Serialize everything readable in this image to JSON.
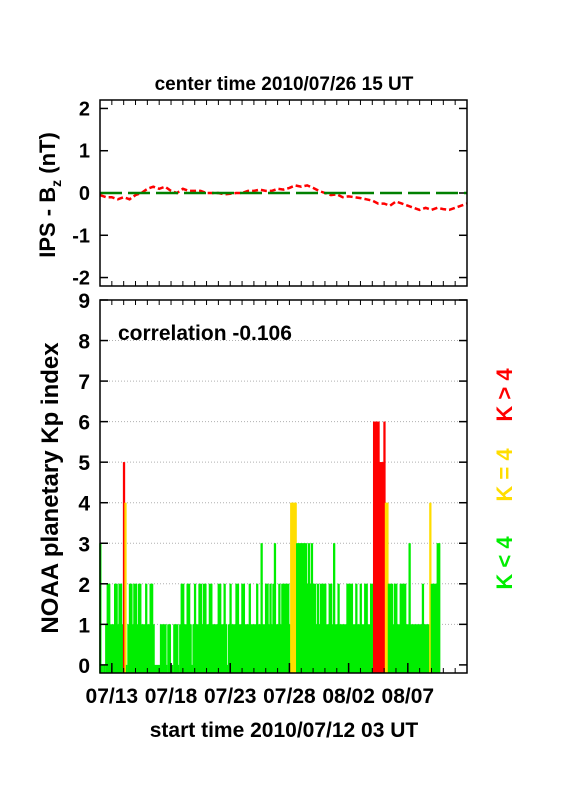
{
  "chart_data": [
    {
      "type": "line",
      "title": "center time 2010/07/26 15 UT",
      "ylabel_main": "IPS - B",
      "ylabel_sub": "z",
      "ylabel_unit": " (nT)",
      "ylim": [
        -2.2,
        2.2
      ],
      "yticks": [
        2,
        1,
        0,
        -1,
        -2
      ],
      "xlim_days": [
        0,
        31
      ],
      "series": [
        {
          "color": "#ff0000",
          "style": "dashed",
          "x": [
            0.0,
            0.5,
            1.0,
            1.5,
            2.0,
            2.5,
            3.0,
            3.5,
            4.0,
            4.5,
            5.0,
            5.5,
            6.0,
            6.5,
            7.0,
            7.5,
            8.0,
            8.5,
            9.0,
            9.5,
            10.0,
            10.5,
            11.0,
            11.5,
            12.0,
            12.5,
            13.0,
            13.5,
            14.0,
            14.5,
            15.0,
            15.5,
            16.0,
            16.5,
            17.0,
            17.5,
            18.0,
            18.5,
            19.0,
            19.5,
            20.0,
            20.5,
            21.0,
            21.5,
            22.0,
            22.5,
            23.0,
            23.5,
            24.0,
            24.5,
            25.0,
            25.5,
            26.0,
            26.5,
            27.0,
            27.5,
            28.0,
            28.5,
            29.0,
            29.5,
            30.0,
            30.5,
            31.0
          ],
          "y": [
            -0.05,
            -0.1,
            -0.1,
            -0.15,
            -0.1,
            -0.15,
            -0.05,
            0.0,
            0.1,
            0.15,
            0.1,
            0.15,
            0.05,
            0.0,
            0.1,
            0.05,
            0.05,
            0.05,
            0.0,
            0.0,
            0.0,
            -0.03,
            -0.02,
            0.0,
            0.0,
            0.05,
            0.05,
            0.08,
            0.05,
            0.05,
            0.1,
            0.08,
            0.12,
            0.18,
            0.15,
            0.18,
            0.12,
            0.05,
            0.0,
            -0.05,
            -0.03,
            -0.1,
            -0.08,
            -0.1,
            -0.12,
            -0.15,
            -0.18,
            -0.25,
            -0.25,
            -0.3,
            -0.2,
            -0.25,
            -0.3,
            -0.35,
            -0.4,
            -0.35,
            -0.4,
            -0.35,
            -0.38,
            -0.4,
            -0.35,
            -0.3,
            -0.25
          ]
        },
        {
          "color": "#008000",
          "style": "long-dash",
          "x": [
            0,
            31
          ],
          "y": [
            0,
            0
          ]
        }
      ]
    },
    {
      "type": "bar",
      "ylabel": "NOAA planetary Kp index",
      "xlabel": "start time 2010/07/12 03 UT",
      "annotation": "correlation -0.106",
      "ylim": [
        -0.2,
        9
      ],
      "yticks": [
        0,
        1,
        2,
        3,
        4,
        5,
        6,
        7,
        8,
        9
      ],
      "xticks": [
        {
          "day": 1,
          "label": "07/13"
        },
        {
          "day": 6,
          "label": "07/18"
        },
        {
          "day": 11,
          "label": "07/23"
        },
        {
          "day": 16,
          "label": "07/28"
        },
        {
          "day": 21,
          "label": "08/02"
        },
        {
          "day": 26,
          "label": "08/07"
        }
      ],
      "grid": true,
      "legend": [
        {
          "label": "K > 4",
          "color": "#ff0000"
        },
        {
          "label": "K = 4",
          "color": "#ffdd00"
        },
        {
          "label": "K < 4",
          "color": "#00ee00"
        }
      ],
      "colors": {
        "low": "#00ee00",
        "mid": "#ffdd00",
        "high": "#ff0000"
      },
      "step_days": 0.125,
      "kp": [
        3,
        0,
        0,
        0,
        1,
        2,
        2,
        1,
        1,
        1,
        2,
        2,
        1,
        2,
        2,
        1,
        5,
        4,
        0,
        1,
        2,
        2,
        1,
        2,
        2,
        1,
        2,
        2,
        1,
        1,
        1,
        2,
        1,
        1,
        2,
        2,
        1,
        0,
        0,
        0,
        0,
        1,
        1,
        1,
        1,
        0,
        1,
        1,
        0,
        0,
        1,
        1,
        1,
        0,
        1,
        2,
        2,
        1,
        1,
        2,
        2,
        1,
        0,
        1,
        2,
        1,
        1,
        2,
        2,
        1,
        2,
        2,
        1,
        1,
        2,
        2,
        1,
        1,
        1,
        1,
        2,
        2,
        1,
        1,
        2,
        1,
        0,
        1,
        2,
        1,
        1,
        1,
        2,
        2,
        1,
        1,
        2,
        2,
        1,
        1,
        1,
        2,
        1,
        1,
        1,
        1,
        2,
        1,
        1,
        3,
        1,
        1,
        2,
        2,
        1,
        2,
        1,
        2,
        3,
        1,
        1,
        2,
        1,
        2,
        2,
        2,
        2,
        2,
        1,
        4,
        4,
        4,
        4,
        3,
        3,
        3,
        3,
        3,
        3,
        3,
        2,
        3,
        2,
        3,
        2,
        2,
        1,
        2,
        1,
        2,
        2,
        2,
        2,
        1,
        1,
        2,
        2,
        1,
        3,
        1,
        1,
        2,
        1,
        1,
        1,
        1,
        1,
        2,
        2,
        2,
        2,
        1,
        1,
        2,
        1,
        1,
        2,
        1,
        1,
        2,
        2,
        1,
        1,
        2,
        2,
        6,
        6,
        6,
        6,
        5,
        5,
        5,
        6,
        4,
        4,
        2,
        2,
        2,
        1,
        2,
        2,
        1,
        1,
        2,
        2,
        2,
        2,
        1,
        1,
        3,
        1,
        1,
        1,
        1,
        1,
        1,
        1,
        1,
        2,
        1,
        1,
        1,
        1,
        4,
        2,
        2,
        2,
        2,
        3,
        3
      ]
    }
  ]
}
